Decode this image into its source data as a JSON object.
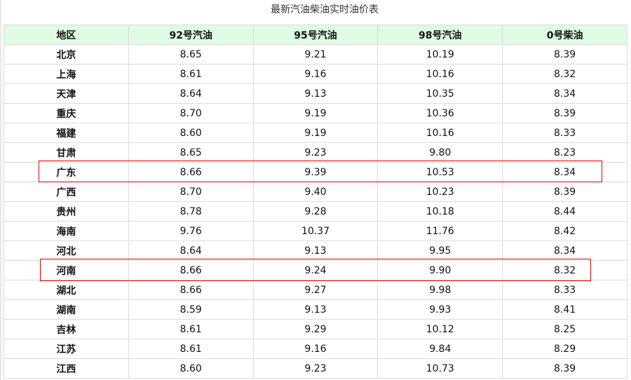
{
  "title": "最新汽油柴油实时油价表",
  "headers": [
    "地区",
    "92号汽油",
    "95号汽油",
    "98号汽油",
    "0号柴油"
  ],
  "rows": [
    [
      "北京",
      "8.65",
      "9.21",
      "10.19",
      "8.39"
    ],
    [
      "上海",
      "8.61",
      "9.16",
      "10.16",
      "8.32"
    ],
    [
      "天津",
      "8.64",
      "9.13",
      "10.35",
      "8.34"
    ],
    [
      "重庆",
      "8.70",
      "9.19",
      "10.36",
      "8.39"
    ],
    [
      "福建",
      "8.60",
      "9.19",
      "10.16",
      "8.33"
    ],
    [
      "甘肃",
      "8.65",
      "9.23",
      "9.80",
      "8.23"
    ],
    [
      "广东",
      "8.66",
      "9.39",
      "10.53",
      "8.34"
    ],
    [
      "广西",
      "8.70",
      "9.40",
      "10.23",
      "8.39"
    ],
    [
      "贵州",
      "8.78",
      "9.28",
      "10.18",
      "8.44"
    ],
    [
      "海南",
      "9.76",
      "10.37",
      "11.76",
      "8.42"
    ],
    [
      "河北",
      "8.64",
      "9.13",
      "9.95",
      "8.34"
    ],
    [
      "河南",
      "8.66",
      "9.24",
      "9.90",
      "8.32"
    ],
    [
      "湖北",
      "8.66",
      "9.27",
      "9.98",
      "8.33"
    ],
    [
      "湖南",
      "8.59",
      "9.13",
      "9.93",
      "8.41"
    ],
    [
      "吉林",
      "8.61",
      "9.29",
      "10.12",
      "8.25"
    ],
    [
      "江苏",
      "8.61",
      "9.16",
      "9.84",
      "8.29"
    ],
    [
      "江西",
      "8.60",
      "9.23",
      "10.73",
      "8.39"
    ]
  ],
  "highlighted_regions": [
    "广东",
    "河南"
  ],
  "colors": {
    "header_bg": "#dffbe3",
    "highlight_border": "#e00000"
  }
}
